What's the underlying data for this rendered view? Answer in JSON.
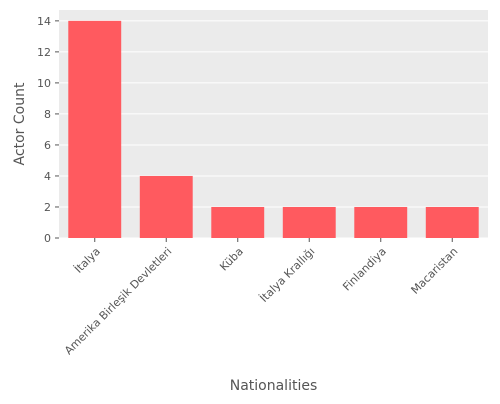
{
  "chart_data": {
    "type": "bar",
    "title": "",
    "xlabel": "Nationalities",
    "ylabel": "Actor Count",
    "categories": [
      "İtalya",
      "Amerika Birleşik Devletleri",
      "Küba",
      "İtalya Krallığı",
      "Finlandiya",
      "Macaristan"
    ],
    "values": [
      14,
      4,
      2,
      2,
      2,
      2
    ],
    "ylim": [
      0,
      14.7
    ],
    "yticks": [
      0,
      2,
      4,
      6,
      8,
      10,
      12,
      14
    ],
    "grid": true,
    "legend": "none"
  },
  "colors": {
    "bar": "#ff5a5f",
    "panel_background": "#ebebeb",
    "grid": "#ffffff",
    "text": "#555555"
  }
}
